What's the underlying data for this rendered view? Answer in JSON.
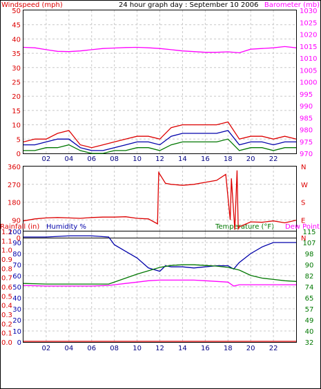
{
  "title": "24 hour graph day : September 10 2006",
  "chart_data": [
    {
      "type": "line",
      "panel": "wind-barometer",
      "left_axis_label": "Windspeed (mph)",
      "right_axis_label": "Barometer (mb)",
      "left_ticks": [
        "0",
        "5",
        "10",
        "15",
        "20",
        "25",
        "30",
        "35",
        "40",
        "45",
        "50"
      ],
      "right_ticks": [
        "970",
        "975",
        "980",
        "985",
        "990",
        "995",
        "1000",
        "1005",
        "1010",
        "1015",
        "1020",
        "1025",
        "1030"
      ],
      "ylim_left": [
        0,
        50
      ],
      "ylim_right": [
        970,
        1030
      ],
      "x_ticks": [
        "02",
        "04",
        "06",
        "08",
        "10",
        "12",
        "14",
        "16",
        "18",
        "20",
        "22"
      ],
      "x_range_hours": [
        0,
        24
      ],
      "grid": true,
      "colors": {
        "gust": "#dd0000",
        "avg": "#0000aa",
        "min": "#007700",
        "barometer": "#ff00ff"
      },
      "series": [
        {
          "key": "barometer",
          "axis": "right",
          "x": [
            0,
            1,
            2,
            3,
            4,
            5,
            6,
            7,
            8,
            9,
            10,
            11,
            12,
            13,
            14,
            15,
            16,
            17,
            18,
            19,
            20,
            21,
            22,
            23,
            24
          ],
          "values": [
            1014.5,
            1014.3,
            1013.5,
            1012.8,
            1012.7,
            1013.0,
            1013.5,
            1014.0,
            1014.2,
            1014.4,
            1014.5,
            1014.3,
            1014.0,
            1013.5,
            1013.0,
            1012.7,
            1012.4,
            1012.4,
            1012.6,
            1012.2,
            1013.7,
            1014.0,
            1014.3,
            1014.8,
            1014.3
          ]
        },
        {
          "key": "gust",
          "axis": "left",
          "x": [
            0,
            1,
            2,
            3,
            4,
            5,
            6,
            7,
            8,
            9,
            10,
            11,
            12,
            13,
            14,
            15,
            16,
            17,
            18,
            19,
            20,
            21,
            22,
            23,
            24
          ],
          "values": [
            4,
            5,
            5,
            7,
            8,
            3,
            2,
            3,
            4,
            5,
            6,
            6,
            5,
            9,
            10,
            10,
            10,
            10,
            11,
            5,
            6,
            6,
            5,
            6,
            5
          ]
        },
        {
          "key": "avg",
          "axis": "left",
          "x": [
            0,
            1,
            2,
            3,
            4,
            5,
            6,
            7,
            8,
            9,
            10,
            11,
            12,
            13,
            14,
            15,
            16,
            17,
            18,
            19,
            20,
            21,
            22,
            23,
            24
          ],
          "values": [
            3,
            3,
            4,
            5,
            5,
            2,
            1,
            1,
            2,
            3,
            4,
            4,
            3,
            6,
            7,
            7,
            7,
            7,
            8,
            3,
            4,
            4,
            3,
            4,
            4
          ]
        },
        {
          "key": "min",
          "axis": "left",
          "x": [
            0,
            1,
            2,
            3,
            4,
            5,
            6,
            7,
            8,
            9,
            10,
            11,
            12,
            13,
            14,
            15,
            16,
            17,
            18,
            19,
            20,
            21,
            22,
            23,
            24
          ],
          "values": [
            1,
            1,
            2,
            2,
            3,
            1,
            0,
            0,
            1,
            1,
            2,
            2,
            1,
            3,
            4,
            4,
            4,
            4,
            5,
            1,
            2,
            2,
            1,
            2,
            2
          ]
        }
      ]
    },
    {
      "type": "line",
      "panel": "wind-direction",
      "left_ticks": [
        "0",
        "90",
        "180",
        "270",
        "360"
      ],
      "right_ticks": [
        "N",
        "E",
        "S",
        "W",
        "N"
      ],
      "ylim": [
        0,
        360
      ],
      "grid": true,
      "color": "#dd0000",
      "series": [
        {
          "key": "direction",
          "x": [
            0,
            1,
            2,
            3,
            4,
            5,
            6,
            7,
            8,
            9,
            10,
            11,
            11.8,
            11.9,
            12.5,
            13,
            14,
            15,
            16,
            17,
            17.8,
            18.2,
            18.3,
            18.6,
            18.8,
            18.9,
            19,
            20,
            21,
            22,
            23,
            24
          ],
          "values": [
            85,
            95,
            100,
            102,
            100,
            98,
            102,
            104,
            104,
            106,
            98,
            95,
            70,
            330,
            275,
            270,
            265,
            270,
            280,
            290,
            320,
            90,
            300,
            40,
            340,
            45,
            55,
            80,
            78,
            85,
            75,
            88
          ]
        }
      ]
    },
    {
      "type": "line",
      "panel": "rain-humidity-temperature",
      "axis_label_rainfall": "Rainfall (in)",
      "axis_label_humidity": "Humidity %",
      "axis_label_temperature": "Temperature (°F)",
      "axis_label_dewpoint": "Dew Point",
      "rain_ticks": [
        "0.0",
        "0.1",
        "0.2",
        "0.3",
        "0.4",
        "0.5",
        "0.6",
        "0.7",
        "0.8",
        "0.9",
        "1.0",
        "1.1",
        "1.2"
      ],
      "humidity_ticks": [
        "0",
        "10",
        "20",
        "30",
        "40",
        "50",
        "60",
        "70",
        "80",
        "90",
        "100"
      ],
      "temp_ticks": [
        "32",
        "40",
        "49",
        "57",
        "65",
        "74",
        "82",
        "90",
        "98",
        "107",
        "115"
      ],
      "ylim_humidity": [
        0,
        100
      ],
      "ylim_temperature": [
        32,
        115
      ],
      "grid": true,
      "colors": {
        "humidity": "#0000aa",
        "temperature": "#007700",
        "dewpoint": "#ff00ff",
        "rainfall": "#dd0000"
      },
      "series": [
        {
          "key": "humidity",
          "x": [
            0,
            2,
            4,
            6,
            7.5,
            8,
            9,
            10,
            11,
            12,
            12.5,
            13,
            14,
            15,
            16,
            17,
            18,
            18.5,
            19,
            20,
            21,
            22,
            23,
            24
          ],
          "values": [
            95,
            95,
            96,
            96,
            95,
            88,
            82,
            76,
            67,
            64,
            69,
            68,
            68,
            67,
            68,
            69,
            69,
            66,
            72,
            80,
            86,
            90,
            90,
            90
          ]
        },
        {
          "key": "temperature",
          "x": [
            0,
            2,
            4,
            6,
            7.5,
            8,
            9,
            10,
            11,
            12,
            13,
            14,
            15,
            16,
            17,
            18,
            19,
            20,
            21,
            22,
            23,
            24
          ],
          "values": [
            76,
            75.5,
            75.5,
            75.5,
            75.5,
            77,
            80,
            83,
            85.5,
            88,
            89.5,
            90,
            90,
            89.5,
            89,
            88,
            86,
            82,
            80,
            79,
            78,
            77.5
          ]
        },
        {
          "key": "dewpoint",
          "x": [
            0,
            2,
            4,
            6,
            7.5,
            8,
            9,
            10,
            11,
            12,
            13,
            14,
            15,
            16,
            17,
            18,
            18.5,
            19,
            20,
            21,
            22,
            23,
            24
          ],
          "values": [
            74.5,
            74,
            74,
            74,
            74.5,
            75,
            76,
            77,
            78,
            78.5,
            78.5,
            78.5,
            78.5,
            78,
            77.5,
            77,
            74,
            75,
            75,
            75,
            75,
            75,
            75
          ]
        },
        {
          "key": "rainfall",
          "x": [
            0,
            24
          ],
          "values": [
            0,
            0
          ]
        }
      ]
    }
  ]
}
